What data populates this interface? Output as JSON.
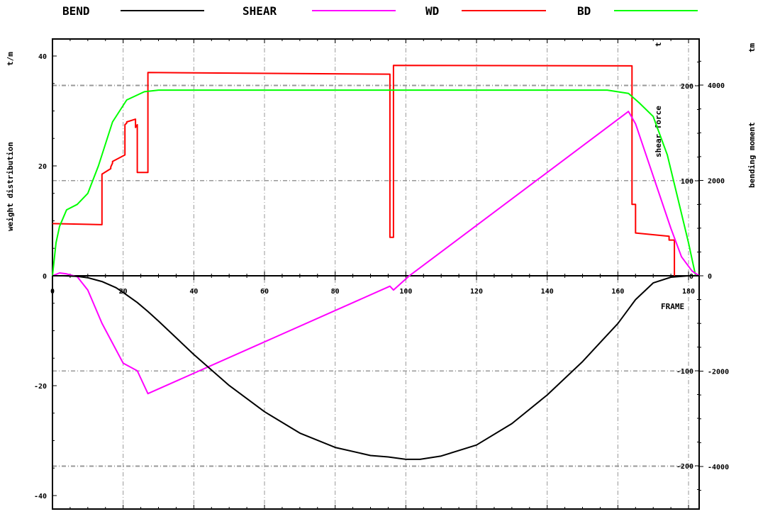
{
  "chart_data": {
    "type": "line",
    "legend": [
      {
        "label": "BEND",
        "color": "#000000"
      },
      {
        "label": "SHEAR",
        "color": "#ff00ff"
      },
      {
        "label": "WD",
        "color": "#ff0000"
      },
      {
        "label": "BD",
        "color": "#00ff00"
      }
    ],
    "xlabel": "FRAME",
    "xlim": [
      0,
      183
    ],
    "xticks": [
      0,
      20,
      40,
      60,
      80,
      100,
      120,
      140,
      160,
      180
    ],
    "y_weight": {
      "label": "weight distribution",
      "unit": "t/m",
      "range": [
        -42,
        43
      ],
      "ticks": [
        -40,
        -20,
        0,
        20,
        40
      ]
    },
    "y_shear": {
      "label": "shear force",
      "unit": "t",
      "range": [
        -273,
        279
      ],
      "ticks": [
        -200,
        -100,
        0,
        100,
        200
      ]
    },
    "y_moment": {
      "label": "bending moment",
      "unit": "tm",
      "range": [
        -4900,
        5000
      ],
      "ticks": [
        -4000,
        -2000,
        0,
        2000,
        4000
      ]
    },
    "series": [
      {
        "name": "WD",
        "axis": "weight",
        "color": "#ff0000",
        "x": [
          0,
          14,
          14,
          16.5,
          16.5,
          17,
          17,
          20.5,
          20.5,
          21,
          21,
          23.5,
          23.5,
          24,
          24,
          24.5,
          24.5,
          27,
          27,
          95.5,
          95.5,
          96.5,
          96.5,
          164,
          164,
          165,
          165,
          174.5,
          174.5,
          176,
          176
        ],
        "y": [
          9.5,
          9.3,
          18.5,
          19.5,
          19.8,
          20.5,
          20.8,
          22.0,
          27.5,
          27.8,
          28.0,
          28.5,
          27.0,
          27.5,
          18.8,
          18.8,
          18.8,
          18.8,
          37.0,
          36.7,
          7.0,
          7.0,
          38.3,
          38.2,
          13.0,
          13.0,
          7.8,
          7.2,
          6.5,
          6.5,
          0
        ]
      },
      {
        "name": "BD",
        "axis": "weight",
        "color": "#00ff00",
        "x": [
          0,
          1,
          2,
          4,
          7,
          10,
          13,
          17,
          21,
          26,
          30,
          157,
          163,
          166,
          170,
          174,
          177,
          180,
          182
        ],
        "y": [
          0,
          6,
          9,
          12,
          13,
          15,
          20,
          28,
          32,
          33.5,
          33.8,
          33.8,
          33.2,
          31.5,
          29,
          22,
          14,
          6,
          0
        ]
      },
      {
        "name": "SHEAR",
        "axis": "shear",
        "color": "#ff00ff",
        "x": [
          0,
          2,
          4,
          7,
          10,
          14,
          20,
          24,
          27,
          95.5,
          96.5,
          101,
          163,
          165,
          170,
          175,
          178,
          181,
          183
        ],
        "y": [
          0,
          3,
          2,
          -1,
          -15,
          -50,
          -92,
          -100,
          -124,
          -11,
          -15,
          0,
          173,
          160,
          105,
          50,
          20,
          5,
          0
        ]
      },
      {
        "name": "BEND",
        "axis": "moment",
        "color": "#000000",
        "x": [
          0,
          3,
          7,
          10,
          14,
          18,
          20,
          24,
          27,
          30,
          35,
          40,
          50,
          60,
          70,
          80,
          90,
          95,
          100,
          104,
          110,
          120,
          130,
          140,
          150,
          155,
          160,
          165,
          170,
          175,
          180,
          183
        ],
        "y": [
          0,
          0,
          -10,
          -40,
          -120,
          -250,
          -350,
          -560,
          -750,
          -950,
          -1300,
          -1650,
          -2300,
          -2850,
          -3300,
          -3600,
          -3770,
          -3800,
          -3850,
          -3850,
          -3780,
          -3550,
          -3100,
          -2500,
          -1800,
          -1400,
          -1000,
          -500,
          -150,
          -30,
          0,
          0
        ]
      }
    ]
  }
}
